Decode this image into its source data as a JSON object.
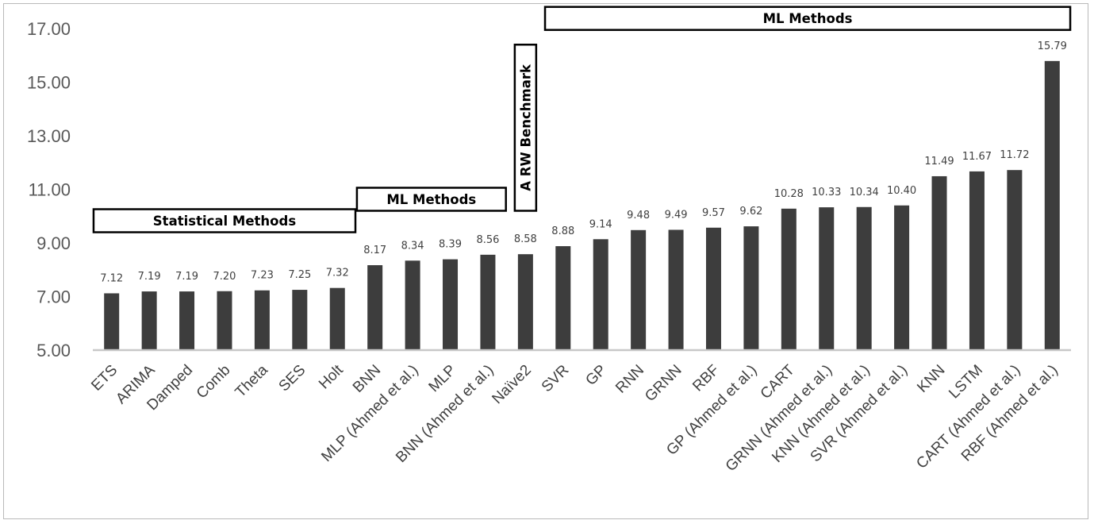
{
  "colors": {
    "bar": "#3d3d3d",
    "axis": "#c8c8c8",
    "box_border": "#000000"
  },
  "chart_data": {
    "type": "bar",
    "title": "",
    "xlabel": "",
    "ylabel": "",
    "ylim": [
      5.0,
      17.0
    ],
    "yticks": [
      "5.00",
      "7.00",
      "9.00",
      "11.00",
      "13.00",
      "15.00",
      "17.00"
    ],
    "grid": false,
    "categories": [
      "ETS",
      "ARIMA",
      "Damped",
      "Comb",
      "Theta",
      "SES",
      "Holt",
      "BNN",
      "MLP (Ahmed et al.)",
      "MLP",
      "BNN  (Ahmed et al.)",
      "Naïve2",
      "SVR",
      "GP",
      "RNN",
      "GRNN",
      "RBF",
      "GP  (Ahmed et al.)",
      "CART",
      "GRNN  (Ahmed et al.)",
      "KNN  (Ahmed et al.)",
      "SVR  (Ahmed et al.)",
      "KNN",
      "LSTM",
      "CART  (Ahmed et al.)",
      "RBF  (Ahmed et al.)"
    ],
    "values": [
      7.12,
      7.19,
      7.19,
      7.2,
      7.23,
      7.25,
      7.32,
      8.17,
      8.34,
      8.39,
      8.56,
      8.58,
      8.88,
      9.14,
      9.48,
      9.49,
      9.57,
      9.62,
      10.28,
      10.33,
      10.34,
      10.4,
      11.49,
      11.67,
      11.72,
      15.79
    ],
    "data_labels": [
      "7.12",
      "7.19",
      "7.19",
      "7.20",
      "7.23",
      "7.25",
      "7.32",
      "8.17",
      "8.34",
      "8.39",
      "8.56",
      "8.58",
      "8.88",
      "9.14",
      "9.48",
      "9.49",
      "9.57",
      "9.62",
      "10.28",
      "10.33",
      "10.34",
      "10.40",
      "11.49",
      "11.67",
      "11.72",
      "15.79"
    ],
    "annotations": [
      {
        "text": "Statistical Methods",
        "from": 0,
        "to": 6,
        "level": 9.4,
        "orientation": "horizontal"
      },
      {
        "text": "ML Methods",
        "from": 7,
        "to": 10,
        "level": 10.2,
        "orientation": "horizontal"
      },
      {
        "text": "A RW Benchmark",
        "from": 11,
        "to": 11,
        "level": 10.2,
        "top": 16.4,
        "orientation": "vertical"
      },
      {
        "text": "ML Methods",
        "from": 12,
        "to": 25,
        "level": 16.95,
        "orientation": "horizontal"
      }
    ]
  }
}
